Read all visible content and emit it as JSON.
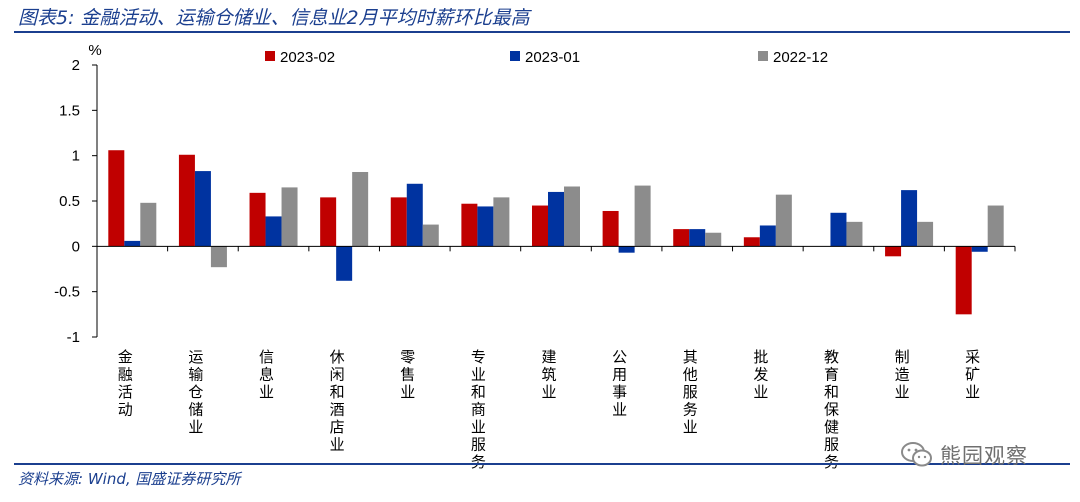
{
  "figure": {
    "title": "图表5:  金融活动、运输仓储业、信息业2月平均时薪环比最高",
    "source": "资料来源:  Wind,  国盛证券研究所",
    "watermark": "熊园观察",
    "watermark_icon": "wechat-icon"
  },
  "chart_data": {
    "type": "bar",
    "ylabel": "%",
    "ylim": [
      -1,
      2
    ],
    "yticks": [
      "2",
      "1.5",
      "1",
      "0.5",
      "0",
      "-0.5",
      "-1"
    ],
    "grid": false,
    "legend_position": "top",
    "categories": [
      "金融活动",
      "运输仓储业",
      "信息业",
      "休闲和酒店业",
      "零售业",
      "专业和商业服务",
      "建筑业",
      "公用事业",
      "其他服务业",
      "批发业",
      "教育和保健服务",
      "制造业",
      "采矿业"
    ],
    "series": [
      {
        "name": "2023-02",
        "color": "#c00000",
        "values": [
          1.06,
          1.01,
          0.59,
          0.54,
          0.54,
          0.47,
          0.45,
          0.39,
          0.19,
          0.1,
          0.0,
          -0.11,
          -0.75
        ]
      },
      {
        "name": "2023-01",
        "color": "#0033a0",
        "values": [
          0.06,
          0.83,
          0.33,
          -0.38,
          0.69,
          0.44,
          0.6,
          -0.07,
          0.19,
          0.23,
          0.37,
          0.62,
          -0.06
        ]
      },
      {
        "name": "2022-12",
        "color": "#8c8c8c",
        "values": [
          0.48,
          -0.23,
          0.65,
          0.82,
          0.24,
          0.54,
          0.66,
          0.67,
          0.15,
          0.57,
          0.27,
          0.27,
          0.45
        ]
      }
    ]
  }
}
